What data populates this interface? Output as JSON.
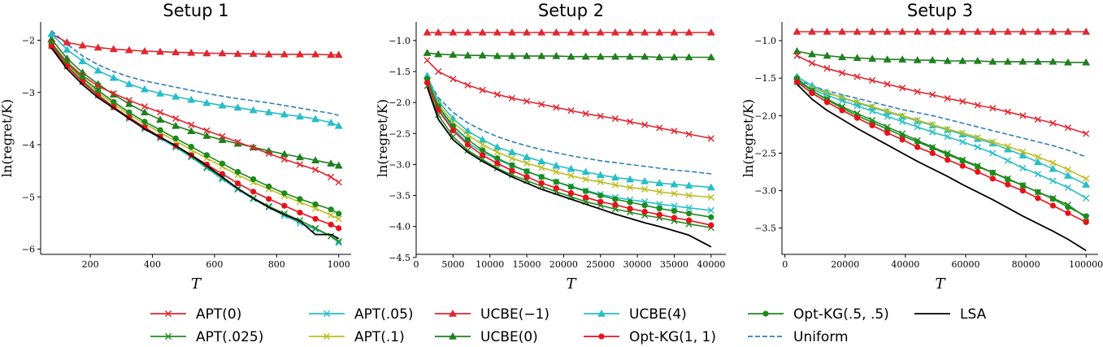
{
  "chart_data": [
    {
      "type": "line",
      "title": "Setup 1",
      "xlabel": "T",
      "ylabel": "ln(regret/K)",
      "xlim": [
        40,
        1040
      ],
      "ylim": [
        -6.1,
        -1.65
      ],
      "xticks": [
        200,
        400,
        600,
        800,
        1000
      ],
      "yticks": [
        -6,
        -5,
        -4,
        -3,
        -2
      ],
      "x": [
        75,
        125,
        175,
        225,
        275,
        325,
        375,
        425,
        475,
        525,
        575,
        625,
        675,
        725,
        775,
        825,
        875,
        925,
        975,
        1000
      ],
      "series": [
        {
          "name": "APT(0)",
          "values": [
            -2.05,
            -2.42,
            -2.68,
            -2.88,
            -3.02,
            -3.15,
            -3.27,
            -3.38,
            -3.5,
            -3.62,
            -3.73,
            -3.84,
            -3.95,
            -4.06,
            -4.17,
            -4.28,
            -4.38,
            -4.48,
            -4.62,
            -4.72
          ]
        },
        {
          "name": "APT(.025)",
          "values": [
            -2.1,
            -2.5,
            -2.8,
            -3.05,
            -3.28,
            -3.48,
            -3.67,
            -3.85,
            -4.03,
            -4.22,
            -4.43,
            -4.63,
            -4.84,
            -5.02,
            -5.18,
            -5.32,
            -5.45,
            -5.6,
            -5.75,
            -5.85
          ]
        },
        {
          "name": "APT(.05)",
          "values": [
            -2.1,
            -2.5,
            -2.78,
            -3.04,
            -3.28,
            -3.5,
            -3.7,
            -3.88,
            -4.05,
            -4.24,
            -4.45,
            -4.66,
            -4.86,
            -5.04,
            -5.2,
            -5.36,
            -5.5,
            -5.62,
            -5.75,
            -5.88
          ]
        },
        {
          "name": "APT(.1)",
          "values": [
            -2.1,
            -2.46,
            -2.76,
            -3.0,
            -3.22,
            -3.42,
            -3.6,
            -3.77,
            -3.93,
            -4.1,
            -4.26,
            -4.42,
            -4.58,
            -4.72,
            -4.85,
            -4.98,
            -5.1,
            -5.22,
            -5.35,
            -5.42
          ]
        },
        {
          "name": "UCBE(−1)",
          "values": [
            -1.88,
            -2.04,
            -2.1,
            -2.14,
            -2.17,
            -2.19,
            -2.21,
            -2.22,
            -2.23,
            -2.24,
            -2.25,
            -2.25,
            -2.26,
            -2.26,
            -2.27,
            -2.27,
            -2.27,
            -2.27,
            -2.28,
            -2.28
          ]
        },
        {
          "name": "UCBE(0)",
          "values": [
            -1.98,
            -2.35,
            -2.62,
            -2.84,
            -3.04,
            -3.22,
            -3.38,
            -3.52,
            -3.64,
            -3.74,
            -3.83,
            -3.91,
            -3.98,
            -4.05,
            -4.12,
            -4.18,
            -4.24,
            -4.3,
            -4.36,
            -4.4
          ]
        },
        {
          "name": "UCBE(4)",
          "values": [
            -1.88,
            -2.18,
            -2.4,
            -2.58,
            -2.72,
            -2.84,
            -2.94,
            -3.02,
            -3.08,
            -3.14,
            -3.2,
            -3.25,
            -3.29,
            -3.34,
            -3.38,
            -3.42,
            -3.46,
            -3.51,
            -3.58,
            -3.64
          ]
        },
        {
          "name": "Opt-KG(1, 1)",
          "values": [
            -2.12,
            -2.5,
            -2.8,
            -3.06,
            -3.28,
            -3.48,
            -3.67,
            -3.85,
            -4.02,
            -4.2,
            -4.38,
            -4.56,
            -4.74,
            -4.9,
            -5.04,
            -5.17,
            -5.3,
            -5.42,
            -5.53,
            -5.6
          ]
        },
        {
          "name": "Opt-KG(.5, .5)",
          "values": [
            -2.08,
            -2.44,
            -2.72,
            -2.96,
            -3.18,
            -3.38,
            -3.56,
            -3.72,
            -3.88,
            -4.04,
            -4.2,
            -4.36,
            -4.52,
            -4.66,
            -4.8,
            -4.93,
            -5.04,
            -5.14,
            -5.24,
            -5.32
          ]
        },
        {
          "name": "Uniform",
          "values": [
            -1.82,
            -2.08,
            -2.3,
            -2.47,
            -2.6,
            -2.7,
            -2.78,
            -2.84,
            -2.9,
            -2.96,
            -3.02,
            -3.07,
            -3.12,
            -3.16,
            -3.2,
            -3.25,
            -3.3,
            -3.35,
            -3.4,
            -3.44
          ]
        },
        {
          "name": "LSA",
          "values": [
            -2.15,
            -2.55,
            -2.85,
            -3.1,
            -3.3,
            -3.5,
            -3.7,
            -3.86,
            -4.02,
            -4.2,
            -4.4,
            -4.62,
            -4.84,
            -5.03,
            -5.2,
            -5.34,
            -5.46,
            -5.72,
            -5.72,
            -5.8
          ]
        }
      ]
    },
    {
      "type": "line",
      "title": "Setup 2",
      "xlabel": "T",
      "ylabel": "ln(regret/K)",
      "xlim": [
        0,
        42000
      ],
      "ylim": [
        -4.45,
        -0.7
      ],
      "xticks": [
        0,
        5000,
        10000,
        15000,
        20000,
        25000,
        30000,
        35000,
        40000
      ],
      "yticks": [
        -4.5,
        -4.0,
        -3.5,
        -3.0,
        -2.5,
        -2.0,
        -1.5,
        -1.0
      ],
      "x": [
        1500,
        3000,
        5000,
        7000,
        9000,
        11000,
        13000,
        15000,
        17000,
        19000,
        21000,
        23000,
        25000,
        27000,
        29000,
        31000,
        33000,
        35000,
        37000,
        40000
      ],
      "series": [
        {
          "name": "APT(0)",
          "values": [
            -1.32,
            -1.5,
            -1.62,
            -1.72,
            -1.8,
            -1.87,
            -1.93,
            -1.98,
            -2.03,
            -2.08,
            -2.13,
            -2.18,
            -2.22,
            -2.26,
            -2.31,
            -2.36,
            -2.41,
            -2.46,
            -2.51,
            -2.58
          ]
        },
        {
          "name": "APT(.025)",
          "values": [
            -1.73,
            -2.2,
            -2.55,
            -2.77,
            -2.92,
            -3.06,
            -3.17,
            -3.26,
            -3.35,
            -3.44,
            -3.52,
            -3.6,
            -3.66,
            -3.72,
            -3.77,
            -3.82,
            -3.86,
            -3.91,
            -3.96,
            -4.02
          ]
        },
        {
          "name": "APT(.05)",
          "values": [
            -1.64,
            -2.08,
            -2.42,
            -2.65,
            -2.8,
            -2.92,
            -3.02,
            -3.11,
            -3.2,
            -3.28,
            -3.35,
            -3.42,
            -3.48,
            -3.53,
            -3.57,
            -3.6,
            -3.64,
            -3.67,
            -3.7,
            -3.74
          ]
        },
        {
          "name": "APT(.1)",
          "values": [
            -1.63,
            -2.02,
            -2.32,
            -2.52,
            -2.68,
            -2.8,
            -2.9,
            -2.98,
            -3.05,
            -3.12,
            -3.18,
            -3.24,
            -3.28,
            -3.33,
            -3.37,
            -3.4,
            -3.44,
            -3.47,
            -3.5,
            -3.53
          ]
        },
        {
          "name": "UCBE(−1)",
          "values": [
            -0.87,
            -0.87,
            -0.87,
            -0.87,
            -0.87,
            -0.87,
            -0.87,
            -0.87,
            -0.87,
            -0.87,
            -0.87,
            -0.87,
            -0.87,
            -0.87,
            -0.87,
            -0.87,
            -0.87,
            -0.87,
            -0.87,
            -0.87
          ]
        },
        {
          "name": "UCBE(0)",
          "values": [
            -1.2,
            -1.22,
            -1.23,
            -1.24,
            -1.24,
            -1.25,
            -1.25,
            -1.25,
            -1.25,
            -1.25,
            -1.26,
            -1.26,
            -1.26,
            -1.26,
            -1.26,
            -1.26,
            -1.27,
            -1.27,
            -1.27,
            -1.27
          ]
        },
        {
          "name": "UCBE(4)",
          "values": [
            -1.57,
            -1.98,
            -2.26,
            -2.46,
            -2.6,
            -2.72,
            -2.8,
            -2.88,
            -2.95,
            -3.02,
            -3.07,
            -3.12,
            -3.17,
            -3.21,
            -3.24,
            -3.27,
            -3.3,
            -3.32,
            -3.34,
            -3.37
          ]
        },
        {
          "name": "Opt-KG(1, 1)",
          "values": [
            -1.68,
            -2.12,
            -2.45,
            -2.68,
            -2.85,
            -2.98,
            -3.1,
            -3.2,
            -3.3,
            -3.38,
            -3.46,
            -3.53,
            -3.6,
            -3.65,
            -3.71,
            -3.76,
            -3.81,
            -3.86,
            -3.9,
            -3.98
          ]
        },
        {
          "name": "Opt-KG(.5, .5)",
          "values": [
            -1.62,
            -2.06,
            -2.38,
            -2.6,
            -2.77,
            -2.9,
            -3.01,
            -3.11,
            -3.2,
            -3.28,
            -3.36,
            -3.43,
            -3.5,
            -3.56,
            -3.61,
            -3.66,
            -3.71,
            -3.75,
            -3.79,
            -3.85
          ]
        },
        {
          "name": "Uniform",
          "values": [
            -1.6,
            -1.92,
            -2.16,
            -2.33,
            -2.45,
            -2.55,
            -2.63,
            -2.7,
            -2.76,
            -2.81,
            -2.86,
            -2.9,
            -2.94,
            -2.97,
            -3.0,
            -3.03,
            -3.06,
            -3.09,
            -3.11,
            -3.15
          ]
        },
        {
          "name": "LSA",
          "values": [
            -1.75,
            -2.27,
            -2.6,
            -2.8,
            -2.95,
            -3.08,
            -3.2,
            -3.3,
            -3.4,
            -3.48,
            -3.56,
            -3.64,
            -3.72,
            -3.8,
            -3.87,
            -3.94,
            -4.0,
            -4.07,
            -4.14,
            -4.33
          ]
        }
      ]
    },
    {
      "type": "line",
      "title": "Setup 3",
      "xlabel": "T",
      "ylabel": "ln(regret/K)",
      "xlim": [
        -1000,
        104000
      ],
      "ylim": [
        -3.85,
        -0.75
      ],
      "xticks": [
        0,
        20000,
        40000,
        60000,
        80000,
        100000
      ],
      "yticks": [
        -3.5,
        -3.0,
        -2.5,
        -2.0,
        -1.5,
        -1.0
      ],
      "x": [
        4000,
        9000,
        14000,
        19000,
        24000,
        29000,
        34000,
        39000,
        44000,
        49000,
        54000,
        59000,
        64000,
        69000,
        74000,
        79000,
        84000,
        89000,
        94000,
        100000
      ],
      "series": [
        {
          "name": "APT(0)",
          "values": [
            -1.2,
            -1.3,
            -1.37,
            -1.43,
            -1.48,
            -1.53,
            -1.58,
            -1.63,
            -1.68,
            -1.72,
            -1.77,
            -1.81,
            -1.86,
            -1.9,
            -1.95,
            -2.0,
            -2.05,
            -2.1,
            -2.16,
            -2.24
          ]
        },
        {
          "name": "APT(.025)",
          "values": [
            -1.52,
            -1.67,
            -1.78,
            -1.88,
            -1.97,
            -2.06,
            -2.15,
            -2.24,
            -2.33,
            -2.42,
            -2.5,
            -2.59,
            -2.67,
            -2.76,
            -2.84,
            -2.93,
            -3.02,
            -3.1,
            -3.19,
            -3.36
          ]
        },
        {
          "name": "APT(.05)",
          "values": [
            -1.55,
            -1.65,
            -1.73,
            -1.8,
            -1.87,
            -1.94,
            -2.01,
            -2.08,
            -2.15,
            -2.22,
            -2.28,
            -2.35,
            -2.42,
            -2.5,
            -2.6,
            -2.7,
            -2.78,
            -2.87,
            -2.96,
            -3.1
          ]
        },
        {
          "name": "APT(.1)",
          "values": [
            -1.56,
            -1.63,
            -1.7,
            -1.76,
            -1.82,
            -1.88,
            -1.94,
            -2.0,
            -2.06,
            -2.12,
            -2.18,
            -2.23,
            -2.29,
            -2.35,
            -2.41,
            -2.48,
            -2.55,
            -2.63,
            -2.72,
            -2.84
          ]
        },
        {
          "name": "UCBE(−1)",
          "values": [
            -0.88,
            -0.88,
            -0.88,
            -0.88,
            -0.88,
            -0.88,
            -0.88,
            -0.88,
            -0.88,
            -0.88,
            -0.88,
            -0.88,
            -0.88,
            -0.88,
            -0.88,
            -0.88,
            -0.88,
            -0.88,
            -0.88,
            -0.88
          ]
        },
        {
          "name": "UCBE(0)",
          "values": [
            -1.14,
            -1.18,
            -1.2,
            -1.22,
            -1.23,
            -1.24,
            -1.25,
            -1.25,
            -1.26,
            -1.26,
            -1.27,
            -1.27,
            -1.27,
            -1.28,
            -1.28,
            -1.28,
            -1.28,
            -1.28,
            -1.29,
            -1.29
          ]
        },
        {
          "name": "UCBE(4)",
          "values": [
            -1.48,
            -1.6,
            -1.69,
            -1.76,
            -1.83,
            -1.89,
            -1.95,
            -2.01,
            -2.07,
            -2.13,
            -2.19,
            -2.25,
            -2.31,
            -2.37,
            -2.45,
            -2.53,
            -2.62,
            -2.71,
            -2.8,
            -2.92
          ]
        },
        {
          "name": "Opt-KG(1, 1)",
          "values": [
            -1.55,
            -1.7,
            -1.82,
            -1.93,
            -2.03,
            -2.13,
            -2.23,
            -2.32,
            -2.42,
            -2.5,
            -2.59,
            -2.67,
            -2.75,
            -2.84,
            -2.92,
            -3.0,
            -3.1,
            -3.2,
            -3.3,
            -3.42
          ]
        },
        {
          "name": "Opt-KG(.5, .5)",
          "values": [
            -1.5,
            -1.67,
            -1.79,
            -1.9,
            -2.0,
            -2.09,
            -2.18,
            -2.27,
            -2.35,
            -2.43,
            -2.52,
            -2.6,
            -2.68,
            -2.76,
            -2.85,
            -2.93,
            -3.02,
            -3.11,
            -3.22,
            -3.34
          ]
        },
        {
          "name": "Uniform",
          "values": [
            -1.52,
            -1.6,
            -1.67,
            -1.72,
            -1.77,
            -1.82,
            -1.87,
            -1.92,
            -1.96,
            -2.0,
            -2.05,
            -2.1,
            -2.15,
            -2.2,
            -2.25,
            -2.3,
            -2.35,
            -2.4,
            -2.46,
            -2.55
          ]
        },
        {
          "name": "LSA",
          "values": [
            -1.58,
            -1.78,
            -1.93,
            -2.05,
            -2.17,
            -2.28,
            -2.39,
            -2.5,
            -2.61,
            -2.71,
            -2.81,
            -2.92,
            -3.02,
            -3.12,
            -3.23,
            -3.34,
            -3.44,
            -3.54,
            -3.65,
            -3.8
          ]
        }
      ]
    }
  ],
  "legend": [
    {
      "name": "APT(0)",
      "color": "#e0262f",
      "marker": "x",
      "dash": false
    },
    {
      "name": "APT(.025)",
      "color": "#228b22",
      "marker": "x",
      "dash": false
    },
    {
      "name": "APT(.05)",
      "color": "#27bec7",
      "marker": "x",
      "dash": false
    },
    {
      "name": "APT(.1)",
      "color": "#bcbd22",
      "marker": "x",
      "dash": false
    },
    {
      "name": "UCBE(−1)",
      "color": "#e0262f",
      "marker": "triangle",
      "dash": false
    },
    {
      "name": "UCBE(0)",
      "color": "#1f7f1f",
      "marker": "triangle",
      "dash": false
    },
    {
      "name": "UCBE(4)",
      "color": "#27bec7",
      "marker": "triangle",
      "dash": false
    },
    {
      "name": "Opt-KG(1, 1)",
      "color": "#e8101a",
      "marker": "circle",
      "dash": false
    },
    {
      "name": "Opt-KG(.5, .5)",
      "color": "#1c8a1c",
      "marker": "circle",
      "dash": false
    },
    {
      "name": "Uniform",
      "color": "#2f7eb8",
      "marker": "none",
      "dash": true
    },
    {
      "name": "LSA",
      "color": "#000000",
      "marker": "none",
      "dash": false
    }
  ]
}
